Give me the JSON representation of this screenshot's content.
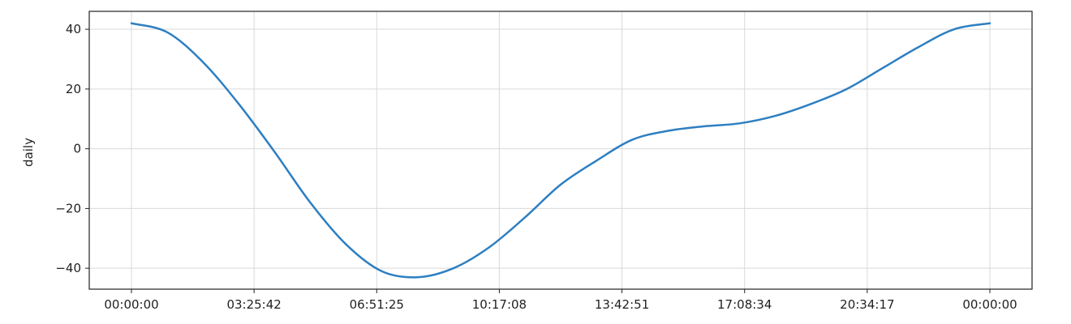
{
  "chart_data": {
    "type": "line",
    "title": "",
    "xlabel": "",
    "ylabel": "daily",
    "xlim": [
      "00:00:00",
      "24:00:00"
    ],
    "ylim": [
      -47,
      46
    ],
    "x_ticks": [
      "00:00:00",
      "03:25:42",
      "06:51:25",
      "10:17:08",
      "13:42:51",
      "17:08:34",
      "20:34:17",
      "00:00:00"
    ],
    "y_ticks": [
      40,
      20,
      0,
      -20,
      -40
    ],
    "y_tick_labels": [
      "40",
      "20",
      "0",
      "−20",
      "−40"
    ],
    "grid": true,
    "line_color": "#2e7fc1",
    "series": [
      {
        "x": [
          "00:00:00",
          "01:00:00",
          "02:00:00",
          "03:00:00",
          "04:00:00",
          "05:00:00",
          "06:00:00",
          "07:00:00",
          "08:00:00",
          "09:00:00",
          "10:00:00",
          "11:00:00",
          "12:00:00",
          "13:00:00",
          "14:00:00",
          "15:00:00",
          "16:00:00",
          "17:00:00",
          "18:00:00",
          "19:00:00",
          "20:00:00",
          "21:00:00",
          "22:00:00",
          "23:00:00",
          "24:00:00"
        ],
        "values": [
          42,
          39,
          29,
          15,
          -1,
          -18,
          -32,
          -41,
          -43,
          -40,
          -33,
          -23,
          -12,
          -4,
          3,
          6,
          7.5,
          8.5,
          11,
          15,
          20,
          27,
          34,
          40,
          42
        ]
      }
    ]
  }
}
